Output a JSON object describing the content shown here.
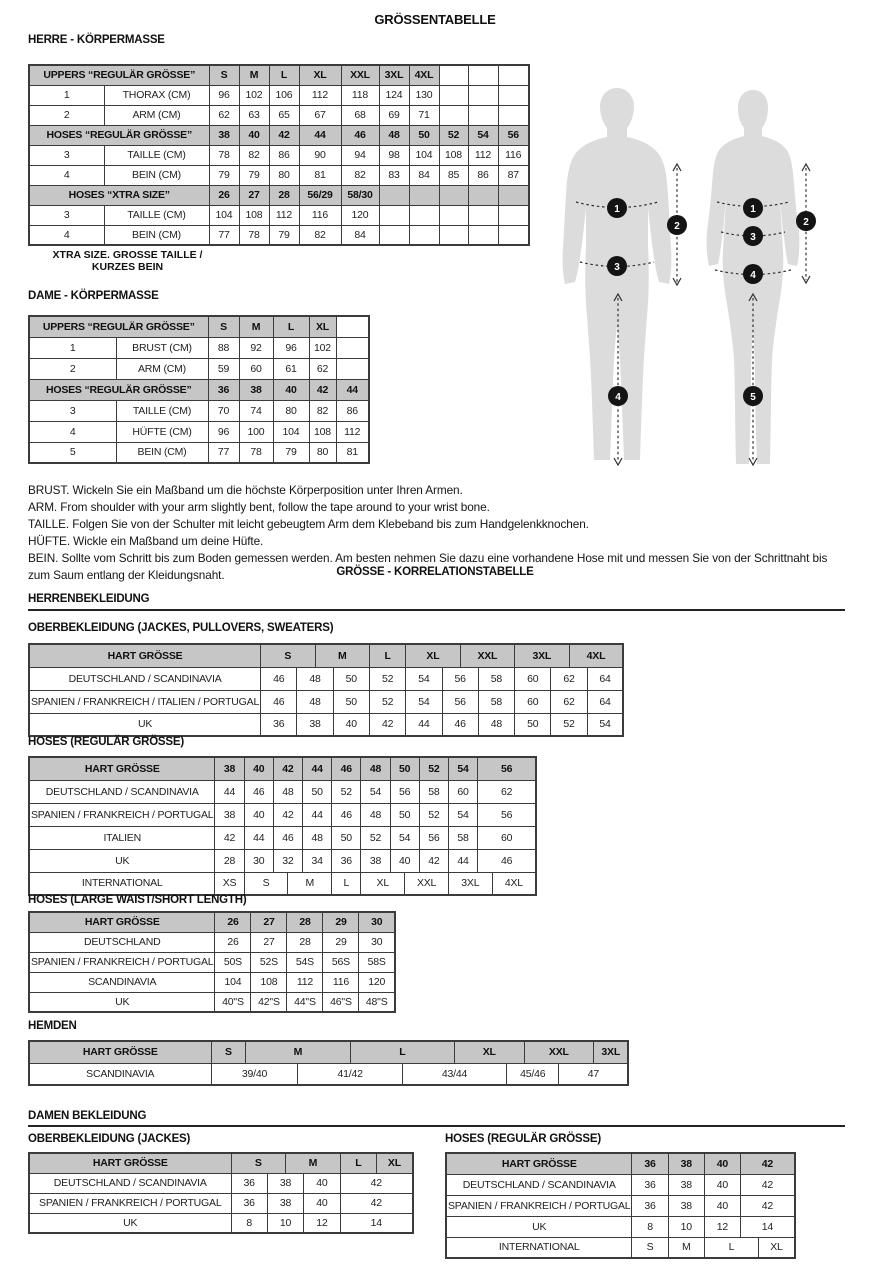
{
  "title": "GRÖSSENTABELLE",
  "headings": {
    "men_body": "HERRE - KÖRPERMASSE",
    "women_body": "DAME - KÖRPERMASSE",
    "correlation": "GRÖSSE - KORRELATIONSTABELLE",
    "menswear": "HERRENBEKLEIDUNG",
    "womenswear": "DAMEN BEKLEIDUNG",
    "men_jackets": "OBERBEKLEIDUNG (JACKES, PULLOVERS, SWEATERS)",
    "men_hoses": "HOSES (REGULÄR GRÖSSE)",
    "men_hoses_short": "HOSES (LARGE WAIST/SHORT LENGTH)",
    "hemden": "HEMDEN",
    "women_jackets": "OBERBEKLEIDUNG (JACKES)",
    "women_hoses": "HOSES (REGULÄR GRÖSSE)"
  },
  "notes": {
    "xtra_line1": "XTRA SIZE. GROSSE TAILLE /",
    "xtra_line2": "KURZES BEIN"
  },
  "instructions": [
    "BRUST. Wickeln Sie ein Maßband um die höchste Körperposition unter Ihren Armen.",
    "ARM. From shoulder with your arm slightly bent, follow the tape around to your wrist bone.",
    "TAILLE. Folgen Sie von der Schulter mit leicht gebeugtem Arm dem Klebeband bis zum Handgelenkknochen.",
    "HÜFTE. Wickle ein Maßband um deine Hüfte.",
    "BEIN. Sollte vom Schritt bis zum Boden gemessen werden. Am besten nehmen Sie dazu eine vorhandene Hose mit und messen Sie von der Schrittnaht bis zum Saum entlang der Kleidungsnaht."
  ],
  "figures": {
    "male": [
      "1",
      "2",
      "3",
      "4"
    ],
    "female": [
      "1",
      "2",
      "3",
      "4",
      "5"
    ]
  },
  "colors": {
    "header_bg": "#c6c6c6",
    "table_border": "#3b3b3b",
    "silhouette": "#dcdcdc",
    "marker": "#141414"
  },
  "tables": {
    "men_body": {
      "rows": [
        [
          {
            "t": "UPPERS “REGULÄR GRÖSSE”",
            "w": 2,
            "h": 1
          },
          {
            "t": "S",
            "h": 1
          },
          {
            "t": "M",
            "h": 1
          },
          {
            "t": "L",
            "h": 1
          },
          {
            "t": "XL",
            "h": 1
          },
          {
            "t": "XXL",
            "h": 1
          },
          {
            "t": "3XL",
            "h": 1
          },
          {
            "t": "4XL",
            "h": 1
          },
          "",
          "",
          ""
        ],
        [
          "1",
          "THORAX (CM)",
          "96",
          "102",
          "106",
          "112",
          "118",
          "124",
          "130",
          "",
          "",
          ""
        ],
        [
          "2",
          "ARM (CM)",
          "62",
          "63",
          "65",
          "67",
          "68",
          "69",
          "71",
          "",
          "",
          ""
        ],
        [
          {
            "t": "HOSES “REGULÄR GRÖSSE”",
            "w": 2,
            "h": 1
          },
          {
            "t": "38",
            "h": 1
          },
          {
            "t": "40",
            "h": 1
          },
          {
            "t": "42",
            "h": 1
          },
          {
            "t": "44",
            "h": 1
          },
          {
            "t": "46",
            "h": 1
          },
          {
            "t": "48",
            "h": 1
          },
          {
            "t": "50",
            "h": 1
          },
          {
            "t": "52",
            "h": 1
          },
          {
            "t": "54",
            "h": 1
          },
          {
            "t": "56",
            "h": 1
          }
        ],
        [
          "3",
          "TAILLE (CM)",
          "78",
          "82",
          "86",
          "90",
          "94",
          "98",
          "104",
          "108",
          "112",
          "116"
        ],
        [
          "4",
          "BEIN (CM)",
          "79",
          "79",
          "80",
          "81",
          "82",
          "83",
          "84",
          "85",
          "86",
          "87"
        ],
        [
          {
            "t": "HOSES “XTRA SIZE”",
            "w": 2,
            "h": 1
          },
          {
            "t": "26",
            "h": 1
          },
          {
            "t": "27",
            "h": 1
          },
          {
            "t": "28",
            "h": 1
          },
          {
            "t": "56/29",
            "h": 1
          },
          {
            "t": "58/30",
            "h": 1
          },
          {
            "t": "",
            "h": 1
          },
          {
            "t": "",
            "h": 1
          },
          {
            "t": "",
            "h": 1
          },
          {
            "t": "",
            "h": 1
          },
          {
            "t": "",
            "h": 1
          }
        ],
        [
          "3",
          "TAILLE (CM)",
          "104",
          "108",
          "112",
          "116",
          "120",
          "",
          "",
          "",
          "",
          ""
        ],
        [
          "4",
          "BEIN (CM)",
          "77",
          "78",
          "79",
          "82",
          "84",
          "",
          "",
          "",
          "",
          ""
        ]
      ]
    },
    "women_body": {
      "rows": [
        [
          {
            "t": "UPPERS “REGULÄR GRÖSSE”",
            "w": 2,
            "h": 1
          },
          {
            "t": "S",
            "h": 1
          },
          {
            "t": "M",
            "h": 1
          },
          {
            "t": "L",
            "h": 1
          },
          {
            "t": "XL",
            "h": 1
          },
          ""
        ],
        [
          "1",
          "BRUST (CM)",
          "88",
          "92",
          "96",
          "102",
          ""
        ],
        [
          "2",
          "ARM (CM)",
          "59",
          "60",
          "61",
          "62",
          ""
        ],
        [
          {
            "t": "HOSES “REGULÄR GRÖSSE”",
            "w": 2,
            "h": 1
          },
          {
            "t": "36",
            "h": 1
          },
          {
            "t": "38",
            "h": 1
          },
          {
            "t": "40",
            "h": 1
          },
          {
            "t": "42",
            "h": 1
          },
          {
            "t": "44",
            "h": 1
          }
        ],
        [
          "3",
          "TAILLE (CM)",
          "70",
          "74",
          "80",
          "82",
          "86"
        ],
        [
          "4",
          "HÜFTE (CM)",
          "96",
          "100",
          "104",
          "108",
          "112"
        ],
        [
          "5",
          "BEIN (CM)",
          "77",
          "78",
          "79",
          "80",
          "81"
        ]
      ]
    },
    "men_jackets": {
      "rows": [
        [
          {
            "t": "HART GRÖSSE",
            "h": 1
          },
          {
            "t": "S",
            "w": 3,
            "h": 1
          },
          {
            "t": "M",
            "w": 3,
            "h": 1
          },
          {
            "t": "L",
            "w": 2,
            "h": 1
          },
          {
            "t": "XL",
            "w": 3,
            "h": 1
          },
          {
            "t": "XXL",
            "w": 3,
            "h": 1
          },
          {
            "t": "3XL",
            "w": 3,
            "h": 1
          },
          {
            "t": "4XL",
            "w": 3,
            "h": 1
          }
        ],
        [
          "DEUTSCHLAND / SCANDINAVIA",
          {
            "t": "46",
            "w": 2
          },
          {
            "t": "48",
            "w": 2
          },
          {
            "t": "50",
            "w": 2
          },
          {
            "t": "52",
            "w": 2
          },
          {
            "t": "54",
            "w": 2
          },
          {
            "t": "56",
            "w": 2
          },
          {
            "t": "58",
            "w": 2
          },
          {
            "t": "60",
            "w": 2
          },
          {
            "t": "62",
            "w": 2
          },
          {
            "t": "64",
            "w": 2
          }
        ],
        [
          "SPANIEN / FRANKREICH / ITALIEN / PORTUGAL",
          {
            "t": "46",
            "w": 2
          },
          {
            "t": "48",
            "w": 2
          },
          {
            "t": "50",
            "w": 2
          },
          {
            "t": "52",
            "w": 2
          },
          {
            "t": "54",
            "w": 2
          },
          {
            "t": "56",
            "w": 2
          },
          {
            "t": "58",
            "w": 2
          },
          {
            "t": "60",
            "w": 2
          },
          {
            "t": "62",
            "w": 2
          },
          {
            "t": "64",
            "w": 2
          }
        ],
        [
          "UK",
          {
            "t": "36",
            "w": 2
          },
          {
            "t": "38",
            "w": 2
          },
          {
            "t": "40",
            "w": 2
          },
          {
            "t": "42",
            "w": 2
          },
          {
            "t": "44",
            "w": 2
          },
          {
            "t": "46",
            "w": 2
          },
          {
            "t": "48",
            "w": 2
          },
          {
            "t": "50",
            "w": 2
          },
          {
            "t": "52",
            "w": 2
          },
          {
            "t": "54",
            "w": 2
          }
        ]
      ]
    },
    "men_hoses": {
      "rows": [
        [
          {
            "t": "HART GRÖSSE",
            "h": 1
          },
          {
            "t": "38",
            "w": 2,
            "h": 1
          },
          {
            "t": "40",
            "w": 2,
            "h": 1
          },
          {
            "t": "42",
            "w": 2,
            "h": 1
          },
          {
            "t": "44",
            "w": 2,
            "h": 1
          },
          {
            "t": "46",
            "w": 2,
            "h": 1
          },
          {
            "t": "48",
            "w": 2,
            "h": 1
          },
          {
            "t": "50",
            "w": 2,
            "h": 1
          },
          {
            "t": "52",
            "w": 2,
            "h": 1
          },
          {
            "t": "54",
            "w": 2,
            "h": 1
          },
          {
            "t": "56",
            "w": 4,
            "h": 1
          }
        ],
        [
          "DEUTSCHLAND / SCANDINAVIA",
          {
            "t": "44",
            "w": 2
          },
          {
            "t": "46",
            "w": 2
          },
          {
            "t": "48",
            "w": 2
          },
          {
            "t": "50",
            "w": 2
          },
          {
            "t": "52",
            "w": 2
          },
          {
            "t": "54",
            "w": 2
          },
          {
            "t": "56",
            "w": 2
          },
          {
            "t": "58",
            "w": 2
          },
          {
            "t": "60",
            "w": 2
          },
          {
            "t": "62",
            "w": 4
          }
        ],
        [
          "SPANIEN / FRANKREICH / PORTUGAL",
          {
            "t": "38",
            "w": 2
          },
          {
            "t": "40",
            "w": 2
          },
          {
            "t": "42",
            "w": 2
          },
          {
            "t": "44",
            "w": 2
          },
          {
            "t": "46",
            "w": 2
          },
          {
            "t": "48",
            "w": 2
          },
          {
            "t": "50",
            "w": 2
          },
          {
            "t": "52",
            "w": 2
          },
          {
            "t": "54",
            "w": 2
          },
          {
            "t": "56",
            "w": 4
          }
        ],
        [
          "ITALIEN",
          {
            "t": "42",
            "w": 2
          },
          {
            "t": "44",
            "w": 2
          },
          {
            "t": "46",
            "w": 2
          },
          {
            "t": "48",
            "w": 2
          },
          {
            "t": "50",
            "w": 2
          },
          {
            "t": "52",
            "w": 2
          },
          {
            "t": "54",
            "w": 2
          },
          {
            "t": "56",
            "w": 2
          },
          {
            "t": "58",
            "w": 2
          },
          {
            "t": "60",
            "w": 4
          }
        ],
        [
          "UK",
          {
            "t": "28",
            "w": 2
          },
          {
            "t": "30",
            "w": 2
          },
          {
            "t": "32",
            "w": 2
          },
          {
            "t": "34",
            "w": 2
          },
          {
            "t": "36",
            "w": 2
          },
          {
            "t": "38",
            "w": 2
          },
          {
            "t": "40",
            "w": 2
          },
          {
            "t": "42",
            "w": 2
          },
          {
            "t": "44",
            "w": 2
          },
          {
            "t": "46",
            "w": 4
          }
        ],
        [
          "INTERNATIONAL",
          {
            "t": "XS",
            "w": 2
          },
          {
            "t": "S",
            "w": 3
          },
          {
            "t": "M",
            "w": 3
          },
          {
            "t": "L",
            "w": 2
          },
          {
            "t": "XL",
            "w": 3
          },
          {
            "t": "XXL",
            "w": 3
          },
          {
            "t": "3XL",
            "w": 3
          },
          {
            "t": "4XL",
            "w": 3
          }
        ]
      ]
    },
    "men_hoses_short": {
      "rows": [
        [
          {
            "t": "HART GRÖSSE",
            "h": 1
          },
          {
            "t": "26",
            "h": 1
          },
          {
            "t": "27",
            "h": 1
          },
          {
            "t": "28",
            "h": 1
          },
          {
            "t": "29",
            "h": 1
          },
          {
            "t": "30",
            "h": 1
          }
        ],
        [
          "DEUTSCHLAND",
          "26",
          "27",
          "28",
          "29",
          "30"
        ],
        [
          "SPANIEN / FRANKREICH / PORTUGAL",
          "50S",
          "52S",
          "54S",
          "56S",
          "58S"
        ],
        [
          "SCANDINAVIA",
          "104",
          "108",
          "112",
          "116",
          "120"
        ],
        [
          "UK",
          "40\"S",
          "42\"S",
          "44\"S",
          "46\"S",
          "48\"S"
        ]
      ]
    },
    "hemden": {
      "rows": [
        [
          {
            "t": "HART GRÖSSE",
            "h": 1
          },
          {
            "t": "S",
            "w": 2,
            "h": 1
          },
          {
            "t": "M",
            "w": 6,
            "h": 1
          },
          {
            "t": "L",
            "w": 6,
            "h": 1
          },
          {
            "t": "XL",
            "w": 4,
            "h": 1
          },
          {
            "t": "XXL",
            "w": 4,
            "h": 1
          },
          {
            "t": "3XL",
            "w": 2,
            "h": 1
          }
        ],
        [
          "SCANDINAVIA",
          {
            "t": "39/40",
            "w": 5
          },
          {
            "t": "41/42",
            "w": 6
          },
          {
            "t": "43/44",
            "w": 6
          },
          {
            "t": "45/46",
            "w": 3
          },
          {
            "t": "47",
            "w": 4
          }
        ]
      ]
    },
    "women_jackets": {
      "rows": [
        [
          {
            "t": "HART GRÖSSE",
            "h": 1
          },
          {
            "t": "S",
            "w": 3,
            "h": 1
          },
          {
            "t": "M",
            "w": 3,
            "h": 1
          },
          {
            "t": "L",
            "w": 2,
            "h": 1
          },
          {
            "t": "XL",
            "w": 2,
            "h": 1
          }
        ],
        [
          "DEUTSCHLAND / SCANDINAVIA",
          {
            "t": "36",
            "w": 2
          },
          {
            "t": "38",
            "w": 2
          },
          {
            "t": "40",
            "w": 2
          },
          {
            "t": "42",
            "w": 4
          }
        ],
        [
          "SPANIEN / FRANKREICH / PORTUGAL",
          {
            "t": "36",
            "w": 2
          },
          {
            "t": "38",
            "w": 2
          },
          {
            "t": "40",
            "w": 2
          },
          {
            "t": "42",
            "w": 4
          }
        ],
        [
          "UK",
          {
            "t": "8",
            "w": 2
          },
          {
            "t": "10",
            "w": 2
          },
          {
            "t": "12",
            "w": 2
          },
          {
            "t": "14",
            "w": 4
          }
        ]
      ]
    },
    "women_hoses": {
      "rows": [
        [
          {
            "t": "HART GRÖSSE",
            "h": 1
          },
          {
            "t": "36",
            "w": 2,
            "h": 1
          },
          {
            "t": "38",
            "w": 2,
            "h": 1
          },
          {
            "t": "40",
            "w": 2,
            "h": 1
          },
          {
            "t": "42",
            "w": 3,
            "h": 1
          }
        ],
        [
          "DEUTSCHLAND / SCANDINAVIA",
          {
            "t": "36",
            "w": 2
          },
          {
            "t": "38",
            "w": 2
          },
          {
            "t": "40",
            "w": 2
          },
          {
            "t": "42",
            "w": 3
          }
        ],
        [
          "SPANIEN / FRANKREICH / PORTUGAL",
          {
            "t": "36",
            "w": 2
          },
          {
            "t": "38",
            "w": 2
          },
          {
            "t": "40",
            "w": 2
          },
          {
            "t": "42",
            "w": 3
          }
        ],
        [
          "UK",
          {
            "t": "8",
            "w": 2
          },
          {
            "t": "10",
            "w": 2
          },
          {
            "t": "12",
            "w": 2
          },
          {
            "t": "14",
            "w": 3
          }
        ],
        [
          "INTERNATIONAL",
          {
            "t": "S",
            "w": 2
          },
          {
            "t": "M",
            "w": 2
          },
          {
            "t": "L",
            "w": 3
          },
          {
            "t": "XL",
            "w": 2
          }
        ]
      ]
    }
  }
}
